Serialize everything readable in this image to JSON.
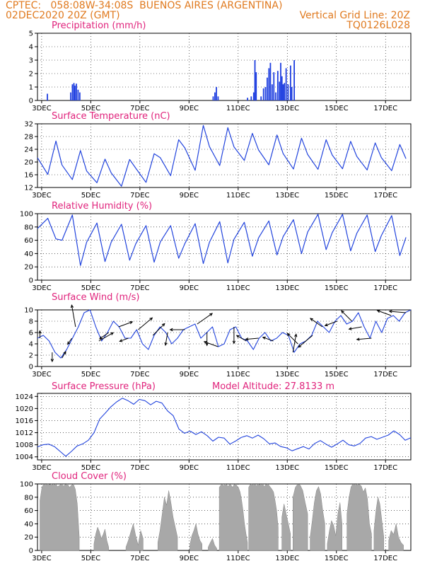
{
  "header": {
    "line1": "CPTEC:   058:08W-34:08S  BUENOS AIRES (ARGENTINA)",
    "line2": "02DEC2020 20Z (GMT)",
    "grid_note": "Vertical Grid Line: 20Z",
    "code": "TQ0126L028"
  },
  "x_ticks": [
    "3DEC",
    "5DEC",
    "7DEC",
    "9DEC",
    "11DEC",
    "13DEC",
    "15DEC",
    "17DEC"
  ],
  "colors": {
    "title": "#e0237c",
    "header": "#e07a1f",
    "line": "#2244dd",
    "bars": "#1f3fe0",
    "cloud": "#a8a8a8"
  },
  "chart_data": [
    {
      "type": "bar",
      "title": "Precipitation (mm/h)",
      "ylim": [
        0,
        5
      ],
      "yticks": [
        0,
        1,
        2,
        3,
        4,
        5
      ],
      "x_unit": "days since 02DEC2020 20Z",
      "bars": [
        [
          0.4,
          0.5
        ],
        [
          1.35,
          0.6
        ],
        [
          1.42,
          1.2
        ],
        [
          1.48,
          1.3
        ],
        [
          1.52,
          1.1
        ],
        [
          1.58,
          1.25
        ],
        [
          1.65,
          0.8
        ],
        [
          1.72,
          0.6
        ],
        [
          7.15,
          0.3
        ],
        [
          7.22,
          0.6
        ],
        [
          7.28,
          1.0
        ],
        [
          7.35,
          0.3
        ],
        [
          8.55,
          0.2
        ],
        [
          8.7,
          0.3
        ],
        [
          8.8,
          0.6
        ],
        [
          8.85,
          3.0
        ],
        [
          8.9,
          2.1
        ],
        [
          9.1,
          0.3
        ],
        [
          9.2,
          0.9
        ],
        [
          9.28,
          1.0
        ],
        [
          9.35,
          1.7
        ],
        [
          9.42,
          2.4
        ],
        [
          9.48,
          2.8
        ],
        [
          9.55,
          1.2
        ],
        [
          9.62,
          2.1
        ],
        [
          9.7,
          0.6
        ],
        [
          9.78,
          2.2
        ],
        [
          9.85,
          1.4
        ],
        [
          9.9,
          2.8
        ],
        [
          9.95,
          1.8
        ],
        [
          10.0,
          1.2
        ],
        [
          10.05,
          1.3
        ],
        [
          10.12,
          2.4
        ],
        [
          10.2,
          1.2
        ],
        [
          10.3,
          2.6
        ],
        [
          10.35,
          1.0
        ],
        [
          10.45,
          3.0
        ]
      ]
    },
    {
      "type": "line",
      "title": "Surface Temperature (nC)",
      "ylim": [
        12,
        32
      ],
      "yticks": [
        12,
        16,
        20,
        24,
        28,
        32
      ],
      "daily_min": [
        16.1,
        14.5,
        13.5,
        12.4,
        13.6,
        15.7,
        17.4,
        18.9,
        20.5,
        19.1,
        17.8,
        17.7,
        17.9,
        17.5,
        17.3,
        17.1
      ],
      "daily_max": [
        26.6,
        23.6,
        20.9,
        20.8,
        22.6,
        27.0,
        31.5,
        30.8,
        29.0,
        28.5,
        27.5,
        27.0,
        26.5,
        26.0,
        25.5,
        25.0
      ]
    },
    {
      "type": "line",
      "title": "Relative Humidity (%)",
      "ylim": [
        0,
        100
      ],
      "yticks": [
        0,
        20,
        40,
        60,
        80,
        100
      ],
      "daily_min": [
        62,
        22,
        28,
        30,
        27,
        33,
        25,
        26,
        36,
        38,
        40,
        46,
        44,
        43,
        37,
        33
      ],
      "daily_max": [
        93,
        98,
        86,
        84,
        82,
        82,
        85,
        88,
        87,
        89,
        91,
        99,
        99,
        98,
        97,
        96
      ]
    },
    {
      "type": "line",
      "title": "Surface Wind (m/s)",
      "ylim": [
        0,
        10
      ],
      "yticks": [
        0,
        2,
        4,
        6,
        8,
        10
      ],
      "series_values": [
        5,
        5.5,
        4.5,
        2.5,
        1.5,
        3,
        5,
        7,
        9.5,
        10,
        7,
        4.5,
        6,
        8,
        7,
        5,
        5,
        6.5,
        4,
        3,
        5.5,
        7,
        6,
        4,
        5,
        6.5,
        7,
        7.5,
        5,
        6,
        7,
        3.5,
        4,
        6.5,
        7,
        5,
        4.5,
        3,
        5,
        6,
        4.5,
        5,
        6,
        5.5,
        2.5,
        4,
        4.5,
        5.5,
        8,
        7,
        6,
        8,
        9,
        7.5,
        8,
        9.5,
        7,
        5,
        8,
        6,
        8.5,
        9,
        8,
        9.5,
        10
      ],
      "arrows": [
        [
          0.1,
          90,
          4
        ],
        [
          0.6,
          270,
          5
        ],
        [
          1.0,
          60,
          4
        ],
        [
          1.4,
          235,
          4
        ],
        [
          1.55,
          100,
          12
        ],
        [
          2.5,
          30,
          9
        ],
        [
          2.9,
          215,
          6
        ],
        [
          3.3,
          20,
          8
        ],
        [
          3.7,
          200,
          5
        ],
        [
          4.1,
          40,
          10
        ],
        [
          4.7,
          45,
          9
        ],
        [
          5.3,
          260,
          7
        ],
        [
          6.0,
          180,
          8
        ],
        [
          6.5,
          35,
          10
        ],
        [
          6.9,
          270,
          7
        ],
        [
          7.35,
          160,
          8
        ],
        [
          8.0,
          270,
          9
        ],
        [
          8.5,
          150,
          6
        ],
        [
          9.0,
          185,
          7
        ],
        [
          9.6,
          160,
          6
        ],
        [
          10.4,
          80,
          10
        ],
        [
          10.6,
          135,
          8
        ],
        [
          11.2,
          220,
          10
        ],
        [
          11.6,
          145,
          8
        ],
        [
          12.2,
          200,
          7
        ],
        [
          12.8,
          135,
          8
        ],
        [
          13.2,
          190,
          7
        ],
        [
          13.6,
          185,
          8
        ],
        [
          14.4,
          160,
          8
        ],
        [
          15.0,
          175,
          9
        ]
      ]
    },
    {
      "type": "line",
      "title": "Surface Pressure (hPa)",
      "annotation": "Model Altitude: 27.8133 m",
      "ylim": [
        1003,
        1025
      ],
      "yticks": [
        1004,
        1008,
        1012,
        1016,
        1020,
        1024
      ],
      "series_values": [
        1007.3,
        1008.0,
        1008.2,
        1007.4,
        1005.8,
        1004.2,
        1005.8,
        1007.6,
        1008.3,
        1009.5,
        1012.0,
        1016.5,
        1018.5,
        1020.6,
        1022.2,
        1023.4,
        1022.6,
        1021.4,
        1023.0,
        1022.6,
        1021.2,
        1022.4,
        1021.8,
        1019.2,
        1017.6,
        1013.2,
        1011.8,
        1012.5,
        1011.4,
        1012.3,
        1011.0,
        1009.2,
        1010.5,
        1010.2,
        1008.2,
        1009.2,
        1010.4,
        1011.0,
        1010.2,
        1011.2,
        1010.0,
        1008.3,
        1008.6,
        1007.4,
        1007.0,
        1006.0,
        1006.7,
        1007.4,
        1006.6,
        1008.4,
        1009.4,
        1008.2,
        1007.2,
        1008.3,
        1009.5,
        1008.0,
        1007.6,
        1008.4,
        1010.2,
        1010.7,
        1009.8,
        1010.5,
        1011.2,
        1012.6,
        1011.4,
        1009.5,
        1010.3
      ]
    },
    {
      "type": "area",
      "title": "Cloud Cover (%)",
      "ylim": [
        0,
        100
      ],
      "yticks": [
        0,
        20,
        40,
        60,
        80,
        100
      ],
      "segments": [
        [
          0.1,
          1.7,
          [
            75,
            95,
            100,
            98,
            100,
            99,
            100,
            98,
            100,
            96,
            98,
            100,
            97,
            99,
            100,
            95,
            98,
            100,
            92,
            70,
            20
          ]
        ],
        [
          2.3,
          2.9,
          [
            10,
            25,
            35,
            28,
            18,
            24,
            32,
            15,
            5
          ]
        ],
        [
          3.6,
          4.3,
          [
            5,
            15,
            28,
            40,
            22,
            8,
            30,
            18
          ]
        ],
        [
          4.9,
          5.7,
          [
            12,
            30,
            55,
            80,
            68,
            90,
            72,
            50,
            35,
            20
          ]
        ],
        [
          6.2,
          6.7,
          [
            8,
            22,
            30,
            40,
            25,
            15,
            10
          ]
        ],
        [
          6.95,
          7.3,
          [
            5,
            12,
            18,
            8,
            3
          ]
        ],
        [
          7.4,
          8.55,
          [
            95,
            98,
            100,
            97,
            100,
            99,
            96,
            100,
            98,
            95,
            99,
            100,
            97,
            94,
            88,
            76,
            60,
            40,
            25,
            12
          ]
        ],
        [
          8.6,
          9.8,
          [
            95,
            99,
            100,
            98,
            100,
            97,
            100,
            99,
            98,
            100,
            96,
            99,
            100,
            98,
            95,
            92,
            88,
            75,
            60,
            35
          ]
        ],
        [
          9.95,
          10.3,
          [
            50,
            70,
            55,
            40,
            25
          ]
        ],
        [
          10.4,
          11.0,
          [
            80,
            95,
            100,
            98,
            90,
            72,
            55
          ]
        ],
        [
          11.1,
          11.7,
          [
            20,
            45,
            72,
            90,
            96,
            85,
            60,
            40
          ]
        ],
        [
          11.8,
          12.4,
          [
            10,
            30,
            45,
            38,
            22,
            55,
            72,
            40
          ]
        ],
        [
          12.6,
          13.6,
          [
            55,
            80,
            96,
            100,
            98,
            100,
            99,
            97,
            88,
            94,
            78,
            40,
            25
          ]
        ],
        [
          13.7,
          14.1,
          [
            30,
            60,
            80,
            70,
            45,
            20
          ]
        ],
        [
          14.3,
          14.9,
          [
            15,
            30,
            24,
            40,
            20,
            12,
            8
          ]
        ]
      ]
    }
  ]
}
